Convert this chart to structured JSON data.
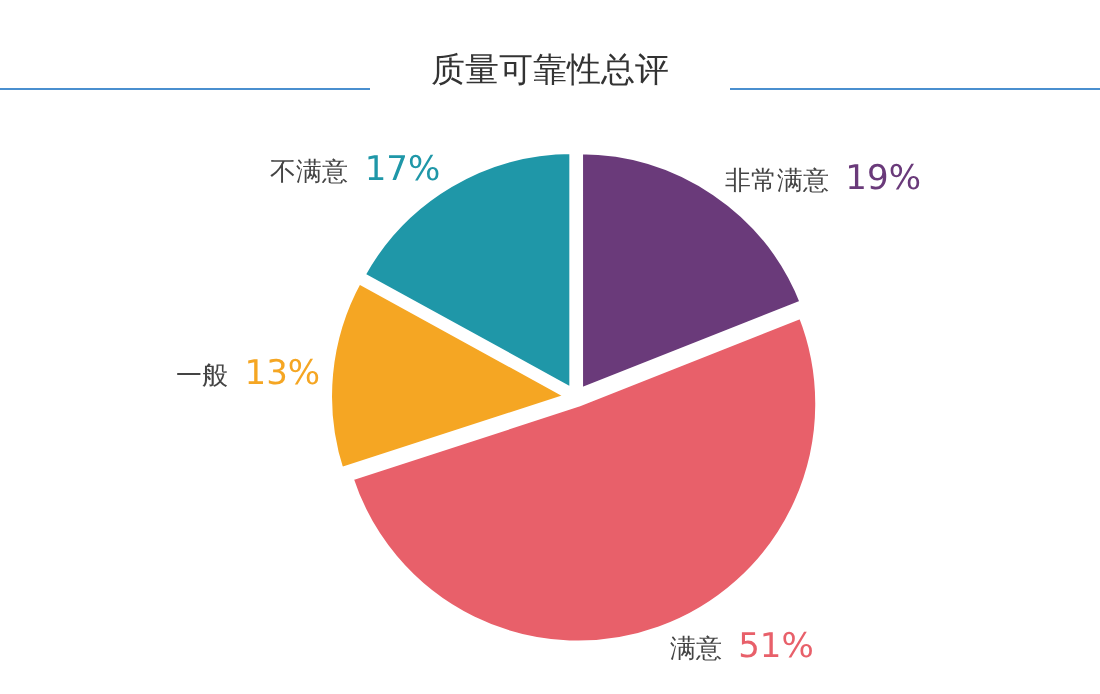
{
  "chart_data": {
    "type": "pie",
    "title": "质量可靠性总评",
    "categories": [
      "非常满意",
      "满意",
      "一般",
      "不满意"
    ],
    "values": [
      19,
      51,
      13,
      17
    ],
    "colors": [
      "#6a3a7a",
      "#e8606a",
      "#f5a623",
      "#1f97a8"
    ],
    "value_labels": [
      "19%",
      "51%",
      "13%",
      "17%"
    ]
  }
}
